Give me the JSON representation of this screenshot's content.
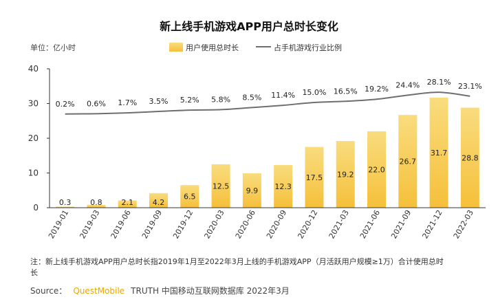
{
  "chart_data": {
    "type": "bar",
    "title": "新上线手机游戏APP用户总时长变化",
    "unit_label": "单位：亿小时",
    "ylim": [
      0,
      40
    ],
    "yticks": [
      0,
      10,
      20,
      30,
      40
    ],
    "categories": [
      "2019-01",
      "2019-03",
      "2019-06",
      "2019-09",
      "2019-12",
      "2020-03",
      "2020-06",
      "2020-09",
      "2020-12",
      "2021-03",
      "2021-06",
      "2021-09",
      "2021-12",
      "2022-03"
    ],
    "series": [
      {
        "name": "用户使用总时长",
        "type": "bar",
        "values": [
          0.3,
          0.8,
          2.1,
          4.2,
          6.5,
          12.5,
          9.9,
          12.3,
          17.5,
          19.2,
          22.0,
          26.7,
          31.7,
          28.8
        ],
        "labels": [
          "0.3",
          "0.8",
          "2.1",
          "4.2",
          "6.5",
          "12.5",
          "9.9",
          "12.3",
          "17.5",
          "19.2",
          "22.0",
          "26.7",
          "31.7",
          "28.8"
        ]
      },
      {
        "name": "占手机游戏行业比例",
        "type": "line",
        "values": [
          0.2,
          0.6,
          1.7,
          3.5,
          5.2,
          5.8,
          8.5,
          11.4,
          15.0,
          16.5,
          19.2,
          24.4,
          28.1,
          23.1
        ],
        "labels": [
          "0.2%",
          "0.6%",
          "1.7%",
          "3.5%",
          "5.2%",
          "5.8%",
          "8.5%",
          "11.4%",
          "15.0%",
          "16.5%",
          "19.2%",
          "24.4%",
          "28.1%",
          "23.1%"
        ]
      }
    ],
    "legend": "top-center",
    "grid": false
  },
  "colors": {
    "bar": "#f5c03a",
    "bar_highlight": "#f9dc7e",
    "line": "#6e6e6e",
    "brand": "#e8a800"
  },
  "note": {
    "line1": "注：新上线手机游戏APP用户总时长指2019年1月至2022年3月上线的手机游戏APP（月活跃用户规模≥1万）合计使用总时",
    "line2": "长"
  },
  "source": {
    "prefix": "Source：",
    "brand": "QuestMobile",
    "rest": "TRUTH 中国移动互联网数据库 2022年3月"
  }
}
